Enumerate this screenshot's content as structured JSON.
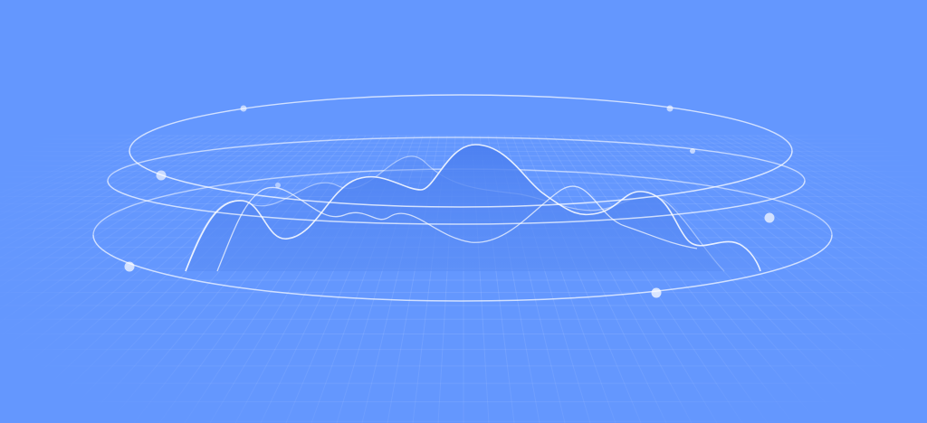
{
  "colors": {
    "background": "#6497fe",
    "grid": "#ffffff",
    "ring": "#ffffff",
    "wave_line": "#ffffff",
    "wave_fill_top": "#4b7ff0",
    "wave_fill_bottom": "#5f91f8",
    "node": "#ffffff"
  },
  "icons": {
    "scene": "abstract-wave-rings-illustration"
  }
}
